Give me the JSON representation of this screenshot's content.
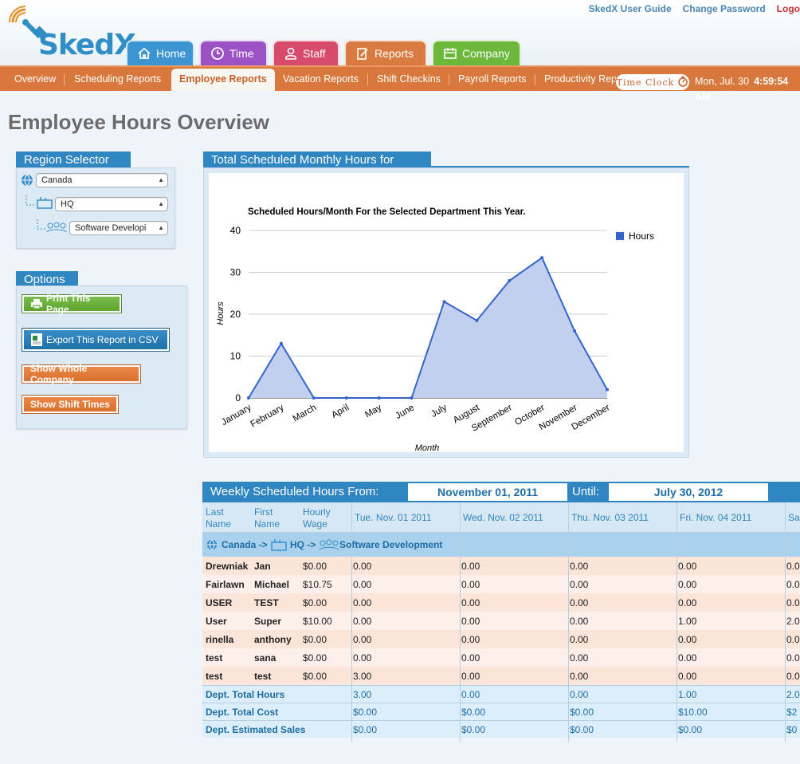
{
  "app": {
    "logo": "SkedX"
  },
  "toplinks": {
    "guide": "SkedX User Guide",
    "password": "Change Password",
    "logout": "Logo"
  },
  "maintabs": [
    {
      "label": "Home",
      "icon": "home-icon"
    },
    {
      "label": "Time",
      "icon": "clock-icon"
    },
    {
      "label": "Staff",
      "icon": "person-icon"
    },
    {
      "label": "Reports",
      "icon": "clipboard-edit-icon"
    },
    {
      "label": "Company",
      "icon": "calendar-icon"
    }
  ],
  "subnav": {
    "items": [
      "Overview",
      "Scheduling Reports",
      "Employee Reports",
      "Vacation Reports",
      "Shift Checkins",
      "Payroll Reports",
      "Productivity Rep"
    ],
    "active": "Employee Reports",
    "timeclock": "Time Clock",
    "date": "Mon, Jul. 30",
    "time": "4:59:54 AM"
  },
  "page_title": "Employee Hours Overview",
  "region": {
    "title": "Region Selector",
    "country": "Canada",
    "location": "HQ",
    "department": "Software Developi"
  },
  "options": {
    "title": "Options",
    "print": "Print This Page",
    "export": "Export This Report in CSV",
    "whole_company": "Show Whole Company",
    "shift_times": "Show Shift Times"
  },
  "chart_panel_title": "Total Scheduled Monthly Hours for",
  "chart_data": {
    "type": "area",
    "title": "Scheduled Hours/Month For the Selected Department This Year.",
    "xlabel": "Month",
    "ylabel": "Hours",
    "categories": [
      "January",
      "February",
      "March",
      "April",
      "May",
      "June",
      "July",
      "August",
      "September",
      "October",
      "November",
      "December"
    ],
    "series": [
      {
        "name": "Hours",
        "values": [
          0,
          13,
          0,
          0,
          0,
          0,
          23,
          18.5,
          28,
          33.5,
          16,
          2
        ]
      }
    ],
    "ylim": [
      0,
      40
    ],
    "yticks": [
      0,
      10,
      20,
      30,
      40
    ],
    "grid": true,
    "legend": "right",
    "color": "#3366cc",
    "fill": "#c2cfee"
  },
  "weekly": {
    "label_from": "Weekly Scheduled Hours From:",
    "from": "November 01, 2011",
    "label_until": "Until:",
    "until": "July 30, 2012"
  },
  "table": {
    "headers": {
      "last": "Last Name",
      "first": "First Name",
      "wage": "Hourly Wage",
      "days": [
        "Tue. Nov. 01 2011",
        "Wed. Nov. 02 2011",
        "Thu. Nov. 03 2011",
        "Fri. Nov. 04 2011",
        "Sa"
      ]
    },
    "group_path": [
      "Canada ->",
      "HQ ->",
      "Software Development"
    ],
    "rows": [
      {
        "last": "Drewniak",
        "first": "Jan",
        "wage": "$0.00",
        "days": [
          "0.00",
          "0.00",
          "0.00",
          "0.00",
          "0.0"
        ]
      },
      {
        "last": "Fairlawn",
        "first": "Michael",
        "wage": "$10.75",
        "days": [
          "0.00",
          "0.00",
          "0.00",
          "0.00",
          "0.0"
        ]
      },
      {
        "last": "USER",
        "first": "TEST",
        "wage": "$0.00",
        "days": [
          "0.00",
          "0.00",
          "0.00",
          "0.00",
          "0.0"
        ]
      },
      {
        "last": "User",
        "first": "Super",
        "wage": "$10.00",
        "days": [
          "0.00",
          "0.00",
          "0.00",
          "1.00",
          "2.0"
        ]
      },
      {
        "last": "rinella",
        "first": "anthony",
        "wage": "$0.00",
        "days": [
          "0.00",
          "0.00",
          "0.00",
          "0.00",
          "0.0"
        ]
      },
      {
        "last": "test",
        "first": "sana",
        "wage": "$0.00",
        "days": [
          "0.00",
          "0.00",
          "0.00",
          "0.00",
          "0.0"
        ]
      },
      {
        "last": "test",
        "first": "test",
        "wage": "$0.00",
        "days": [
          "3.00",
          "0.00",
          "0.00",
          "0.00",
          "0.0"
        ]
      }
    ],
    "totals": [
      {
        "label": "Dept. Total Hours",
        "days": [
          "3.00",
          "0.00",
          "0.00",
          "1.00",
          "2.0"
        ]
      },
      {
        "label": "Dept. Total Cost",
        "days": [
          "$0.00",
          "$0.00",
          "$0.00",
          "$10.00",
          "$2"
        ]
      },
      {
        "label": "Dept. Estimated Sales",
        "days": [
          "$0.00",
          "$0.00",
          "$0.00",
          "$0.00",
          "$0"
        ]
      }
    ]
  }
}
